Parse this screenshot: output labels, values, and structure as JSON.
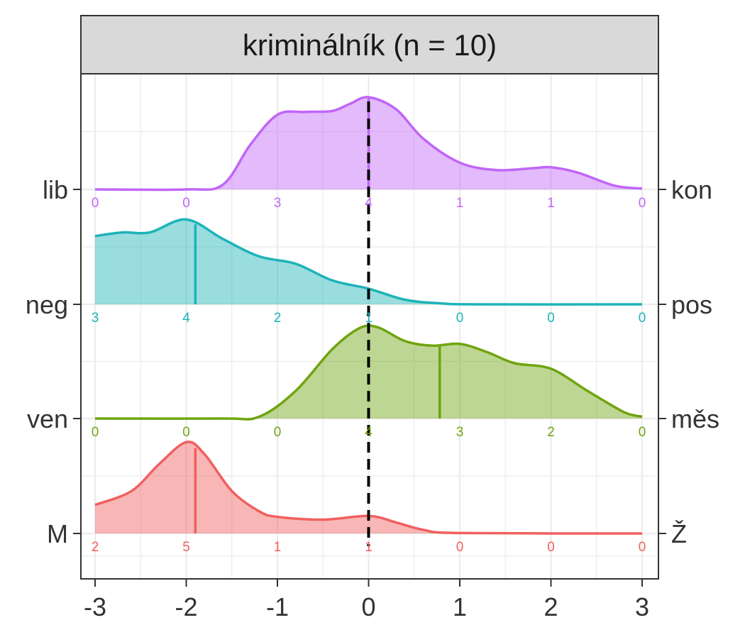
{
  "chart_data": {
    "type": "ridgeline",
    "title": "kriminálník (n = 10)",
    "xlim": [
      -3,
      3
    ],
    "x_ticks": [
      "-3",
      "-2",
      "-1",
      "0",
      "1",
      "2",
      "3"
    ],
    "x_tick_values": [
      -3,
      -2,
      -1,
      0,
      1,
      2,
      3
    ],
    "reference_line_x": 0,
    "count_positions": [
      -3,
      -2,
      -1,
      0,
      1,
      2,
      3
    ],
    "grid": true,
    "rows": [
      {
        "left_label": "M",
        "right_label": "Ž",
        "color": "#F0605E",
        "mean": -1.9,
        "counts": [
          "2",
          "5",
          "1",
          "1",
          "0",
          "0",
          "0"
        ],
        "density": [
          [
            -3,
            0.31
          ],
          [
            -2.6,
            0.46
          ],
          [
            -2.3,
            0.75
          ],
          [
            -2,
            0.99
          ],
          [
            -1.8,
            0.86
          ],
          [
            -1.5,
            0.46
          ],
          [
            -1.2,
            0.24
          ],
          [
            -1,
            0.18
          ],
          [
            -0.5,
            0.15
          ],
          [
            0,
            0.19
          ],
          [
            0.3,
            0.12
          ],
          [
            0.6,
            0.04
          ],
          [
            1,
            0.005
          ],
          [
            3,
            0
          ]
        ]
      },
      {
        "left_label": "ven",
        "right_label": "měs",
        "color": "#6FA40F",
        "mean": 0.78,
        "counts": [
          "0",
          "0",
          "0",
          "4",
          "3",
          "2",
          "0"
        ],
        "density": [
          [
            -3,
            0
          ],
          [
            -1.6,
            0
          ],
          [
            -1.2,
            0.02
          ],
          [
            -0.8,
            0.3
          ],
          [
            -0.4,
            0.75
          ],
          [
            -0.1,
            0.98
          ],
          [
            0.1,
            0.99
          ],
          [
            0.4,
            0.84
          ],
          [
            0.7,
            0.79
          ],
          [
            1,
            0.81
          ],
          [
            1.3,
            0.72
          ],
          [
            1.6,
            0.6
          ],
          [
            2,
            0.54
          ],
          [
            2.4,
            0.3
          ],
          [
            2.8,
            0.07
          ],
          [
            3,
            0.02
          ]
        ]
      },
      {
        "left_label": "neg",
        "right_label": "pos",
        "color": "#1DB3B8",
        "mean": -1.9,
        "counts": [
          "3",
          "4",
          "2",
          "1",
          "0",
          "0",
          "0"
        ],
        "density": [
          [
            -3,
            0.74
          ],
          [
            -2.7,
            0.78
          ],
          [
            -2.4,
            0.78
          ],
          [
            -2,
            0.92
          ],
          [
            -1.6,
            0.71
          ],
          [
            -1.2,
            0.52
          ],
          [
            -0.8,
            0.44
          ],
          [
            -0.4,
            0.26
          ],
          [
            0,
            0.17
          ],
          [
            0.4,
            0.05
          ],
          [
            0.8,
            0.01
          ],
          [
            1.2,
            0
          ],
          [
            3,
            0
          ]
        ]
      },
      {
        "left_label": "lib",
        "right_label": "kon",
        "color": "#C066F7",
        "mean": 0,
        "counts": [
          "0",
          "0",
          "3",
          "4",
          "1",
          "1",
          "0"
        ],
        "density": [
          [
            -3,
            0
          ],
          [
            -2,
            0
          ],
          [
            -1.6,
            0.05
          ],
          [
            -1.3,
            0.48
          ],
          [
            -1,
            0.81
          ],
          [
            -0.7,
            0.84
          ],
          [
            -0.4,
            0.85
          ],
          [
            -0.2,
            0.93
          ],
          [
            0,
            1
          ],
          [
            0.3,
            0.87
          ],
          [
            0.6,
            0.55
          ],
          [
            1,
            0.29
          ],
          [
            1.4,
            0.21
          ],
          [
            1.8,
            0.23
          ],
          [
            2,
            0.24
          ],
          [
            2.3,
            0.18
          ],
          [
            2.7,
            0.04
          ],
          [
            3,
            0.01
          ]
        ]
      }
    ]
  }
}
